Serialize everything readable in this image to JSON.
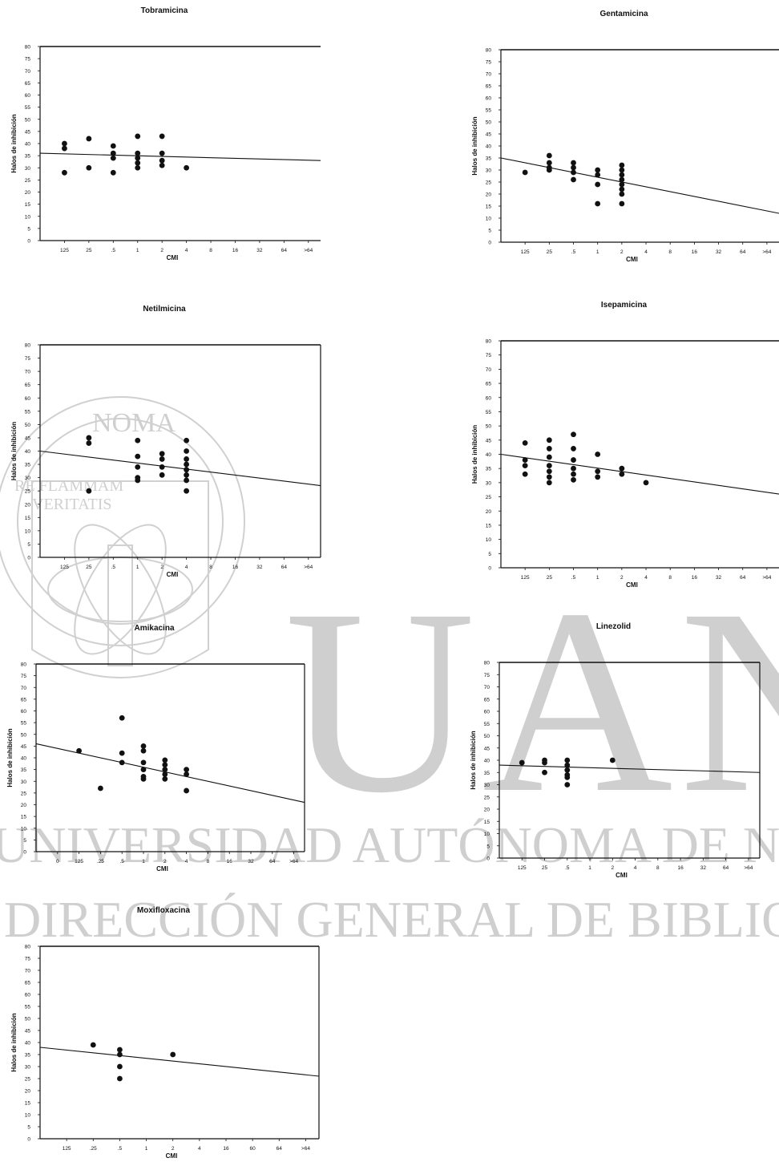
{
  "watermark": {
    "logo_text": "UANL",
    "line1": "UNIVERSIDAD AUTÓNOMA DE NUEVO LEÓN",
    "line2": "DIRECCIÓN GENERAL DE BIBLIOTECAS",
    "seal_lines": [
      "NOMA",
      "RE FLAMMAM",
      "VERITATIS"
    ]
  },
  "chart_data": [
    {
      "type": "scatter",
      "title": "Tobramicina",
      "xlabel": "CMI",
      "ylabel": "Halos de inhibición",
      "categories": [
        "125",
        "25",
        ".5",
        "1",
        "2",
        "4",
        "8",
        "16",
        "32",
        "64",
        ">64"
      ],
      "ylim": [
        0,
        80
      ],
      "yticks": [
        0,
        5,
        10,
        15,
        20,
        25,
        30,
        35,
        40,
        45,
        50,
        55,
        60,
        65,
        70,
        75,
        80
      ],
      "points": [
        {
          "x": "125",
          "y": 38
        },
        {
          "x": "125",
          "y": 40
        },
        {
          "x": "125",
          "y": 28
        },
        {
          "x": "25",
          "y": 42
        },
        {
          "x": "25",
          "y": 30
        },
        {
          "x": ".5",
          "y": 39
        },
        {
          "x": ".5",
          "y": 36
        },
        {
          "x": ".5",
          "y": 34
        },
        {
          "x": ".5",
          "y": 28
        },
        {
          "x": "1",
          "y": 43
        },
        {
          "x": "1",
          "y": 36
        },
        {
          "x": "1",
          "y": 34
        },
        {
          "x": "1",
          "y": 32
        },
        {
          "x": "1",
          "y": 30
        },
        {
          "x": "2",
          "y": 43
        },
        {
          "x": "2",
          "y": 36
        },
        {
          "x": "2",
          "y": 33
        },
        {
          "x": "2",
          "y": 31
        },
        {
          "x": "4",
          "y": 30
        }
      ],
      "trend": {
        "start": 36,
        "end": 33
      }
    },
    {
      "type": "scatter",
      "title": "Gentamicina",
      "xlabel": "CMI",
      "ylabel": "Halos de inhibición",
      "categories": [
        "125",
        "25",
        ".5",
        "1",
        "2",
        "4",
        "8",
        "16",
        "32",
        "64",
        ">64"
      ],
      "ylim": [
        0,
        80
      ],
      "yticks": [
        0,
        5,
        10,
        15,
        20,
        25,
        30,
        35,
        40,
        45,
        50,
        55,
        60,
        65,
        70,
        75,
        80
      ],
      "points": [
        {
          "x": "125",
          "y": 29
        },
        {
          "x": "25",
          "y": 36
        },
        {
          "x": "25",
          "y": 33
        },
        {
          "x": "25",
          "y": 31
        },
        {
          "x": "25",
          "y": 30
        },
        {
          "x": ".5",
          "y": 33
        },
        {
          "x": ".5",
          "y": 31
        },
        {
          "x": ".5",
          "y": 29
        },
        {
          "x": ".5",
          "y": 26
        },
        {
          "x": "1",
          "y": 30
        },
        {
          "x": "1",
          "y": 28
        },
        {
          "x": "1",
          "y": 24
        },
        {
          "x": "1",
          "y": 16
        },
        {
          "x": "2",
          "y": 32
        },
        {
          "x": "2",
          "y": 30
        },
        {
          "x": "2",
          "y": 28
        },
        {
          "x": "2",
          "y": 26
        },
        {
          "x": "2",
          "y": 24
        },
        {
          "x": "2",
          "y": 22
        },
        {
          "x": "2",
          "y": 20
        },
        {
          "x": "2",
          "y": 16
        }
      ],
      "trend": {
        "start": 35,
        "end": 12
      }
    },
    {
      "type": "scatter",
      "title": "Netilmicina",
      "xlabel": "CMI",
      "ylabel": "Halos de inhibición",
      "categories": [
        "125",
        "25",
        ".5",
        "1",
        "2",
        "4",
        "8",
        "16",
        "32",
        "64",
        ">64"
      ],
      "ylim": [
        0,
        80
      ],
      "yticks": [
        0,
        5,
        10,
        15,
        20,
        25,
        30,
        35,
        40,
        45,
        50,
        55,
        60,
        65,
        70,
        75,
        80
      ],
      "points": [
        {
          "x": "25",
          "y": 45
        },
        {
          "x": "25",
          "y": 43
        },
        {
          "x": "25",
          "y": 25
        },
        {
          "x": "1",
          "y": 44
        },
        {
          "x": "1",
          "y": 38
        },
        {
          "x": "1",
          "y": 34
        },
        {
          "x": "1",
          "y": 30
        },
        {
          "x": "1",
          "y": 29
        },
        {
          "x": "2",
          "y": 39
        },
        {
          "x": "2",
          "y": 37
        },
        {
          "x": "2",
          "y": 34
        },
        {
          "x": "2",
          "y": 31
        },
        {
          "x": "4",
          "y": 44
        },
        {
          "x": "4",
          "y": 40
        },
        {
          "x": "4",
          "y": 37
        },
        {
          "x": "4",
          "y": 35
        },
        {
          "x": "4",
          "y": 33
        },
        {
          "x": "4",
          "y": 31
        },
        {
          "x": "4",
          "y": 29
        },
        {
          "x": "4",
          "y": 25
        }
      ],
      "trend": {
        "start": 40,
        "end": 27
      }
    },
    {
      "type": "scatter",
      "title": "Isepamicina",
      "xlabel": "CMI",
      "ylabel": "Halos de inhibición",
      "categories": [
        "125",
        "25",
        ".5",
        "1",
        "2",
        "4",
        "8",
        "16",
        "32",
        "64",
        ">64"
      ],
      "ylim": [
        0,
        80
      ],
      "yticks": [
        0,
        5,
        10,
        15,
        20,
        25,
        30,
        35,
        40,
        45,
        50,
        55,
        60,
        65,
        70,
        75,
        80
      ],
      "points": [
        {
          "x": "125",
          "y": 44
        },
        {
          "x": "125",
          "y": 38
        },
        {
          "x": "125",
          "y": 36
        },
        {
          "x": "125",
          "y": 33
        },
        {
          "x": "25",
          "y": 45
        },
        {
          "x": "25",
          "y": 42
        },
        {
          "x": "25",
          "y": 39
        },
        {
          "x": "25",
          "y": 36
        },
        {
          "x": "25",
          "y": 34
        },
        {
          "x": "25",
          "y": 32
        },
        {
          "x": "25",
          "y": 30
        },
        {
          "x": ".5",
          "y": 47
        },
        {
          "x": ".5",
          "y": 42
        },
        {
          "x": ".5",
          "y": 38
        },
        {
          "x": ".5",
          "y": 35
        },
        {
          "x": ".5",
          "y": 33
        },
        {
          "x": ".5",
          "y": 31
        },
        {
          "x": "1",
          "y": 40
        },
        {
          "x": "1",
          "y": 34
        },
        {
          "x": "1",
          "y": 32
        },
        {
          "x": "2",
          "y": 35
        },
        {
          "x": "2",
          "y": 33
        },
        {
          "x": "4",
          "y": 30
        }
      ],
      "trend": {
        "start": 40,
        "end": 26
      }
    },
    {
      "type": "scatter",
      "title": "Amikacina",
      "xlabel": "CMI",
      "ylabel": "Halos de inhibición",
      "categories": [
        "0",
        "125",
        ".25",
        ".5",
        "1",
        "2",
        "4",
        "8",
        "16",
        "32",
        "64",
        ">64"
      ],
      "ylim": [
        0,
        80
      ],
      "yticks": [
        0,
        5,
        10,
        15,
        20,
        25,
        30,
        35,
        40,
        45,
        50,
        55,
        60,
        65,
        70,
        75,
        80
      ],
      "points": [
        {
          "x": "125",
          "y": 43
        },
        {
          "x": ".25",
          "y": 27
        },
        {
          "x": ".5",
          "y": 57
        },
        {
          "x": ".5",
          "y": 42
        },
        {
          "x": ".5",
          "y": 38
        },
        {
          "x": "1",
          "y": 45
        },
        {
          "x": "1",
          "y": 43
        },
        {
          "x": "1",
          "y": 38
        },
        {
          "x": "1",
          "y": 35
        },
        {
          "x": "1",
          "y": 32
        },
        {
          "x": "1",
          "y": 31
        },
        {
          "x": "2",
          "y": 39
        },
        {
          "x": "2",
          "y": 37
        },
        {
          "x": "2",
          "y": 35
        },
        {
          "x": "2",
          "y": 33
        },
        {
          "x": "2",
          "y": 31
        },
        {
          "x": "4",
          "y": 35
        },
        {
          "x": "4",
          "y": 33
        },
        {
          "x": "4",
          "y": 26
        }
      ],
      "trend": {
        "start": 46,
        "end": 21
      }
    },
    {
      "type": "scatter",
      "title": "Linezolid",
      "xlabel": "CMI",
      "ylabel": "Halos de inhibición",
      "categories": [
        "125",
        "25",
        ".5",
        "1",
        "2",
        "4",
        "8",
        "16",
        "32",
        "64",
        ">64"
      ],
      "ylim": [
        0,
        80
      ],
      "yticks": [
        0,
        5,
        10,
        15,
        20,
        25,
        30,
        35,
        40,
        45,
        50,
        55,
        60,
        65,
        70,
        75,
        80
      ],
      "points": [
        {
          "x": "125",
          "y": 39
        },
        {
          "x": "25",
          "y": 40
        },
        {
          "x": "25",
          "y": 39
        },
        {
          "x": "25",
          "y": 35
        },
        {
          "x": ".5",
          "y": 40
        },
        {
          "x": ".5",
          "y": 38
        },
        {
          "x": ".5",
          "y": 36
        },
        {
          "x": ".5",
          "y": 34
        },
        {
          "x": ".5",
          "y": 33
        },
        {
          "x": ".5",
          "y": 30
        },
        {
          "x": "2",
          "y": 40
        }
      ],
      "trend": {
        "start": 38,
        "end": 35
      }
    },
    {
      "type": "scatter",
      "title": "Moxifloxacina",
      "xlabel": "CMI",
      "ylabel": "Halos de inhibición",
      "categories": [
        "125",
        ".25",
        ".5",
        "1",
        "2",
        "4",
        "16",
        "60",
        "64",
        ">64"
      ],
      "ylim": [
        0,
        80
      ],
      "yticks": [
        0,
        5,
        10,
        15,
        20,
        25,
        30,
        35,
        40,
        45,
        50,
        55,
        60,
        65,
        70,
        75,
        80
      ],
      "points": [
        {
          "x": ".25",
          "y": 39
        },
        {
          "x": ".5",
          "y": 37
        },
        {
          "x": ".5",
          "y": 35
        },
        {
          "x": ".5",
          "y": 30
        },
        {
          "x": ".5",
          "y": 25
        },
        {
          "x": "2",
          "y": 35
        }
      ],
      "trend": {
        "start": 38,
        "end": 26
      }
    }
  ]
}
